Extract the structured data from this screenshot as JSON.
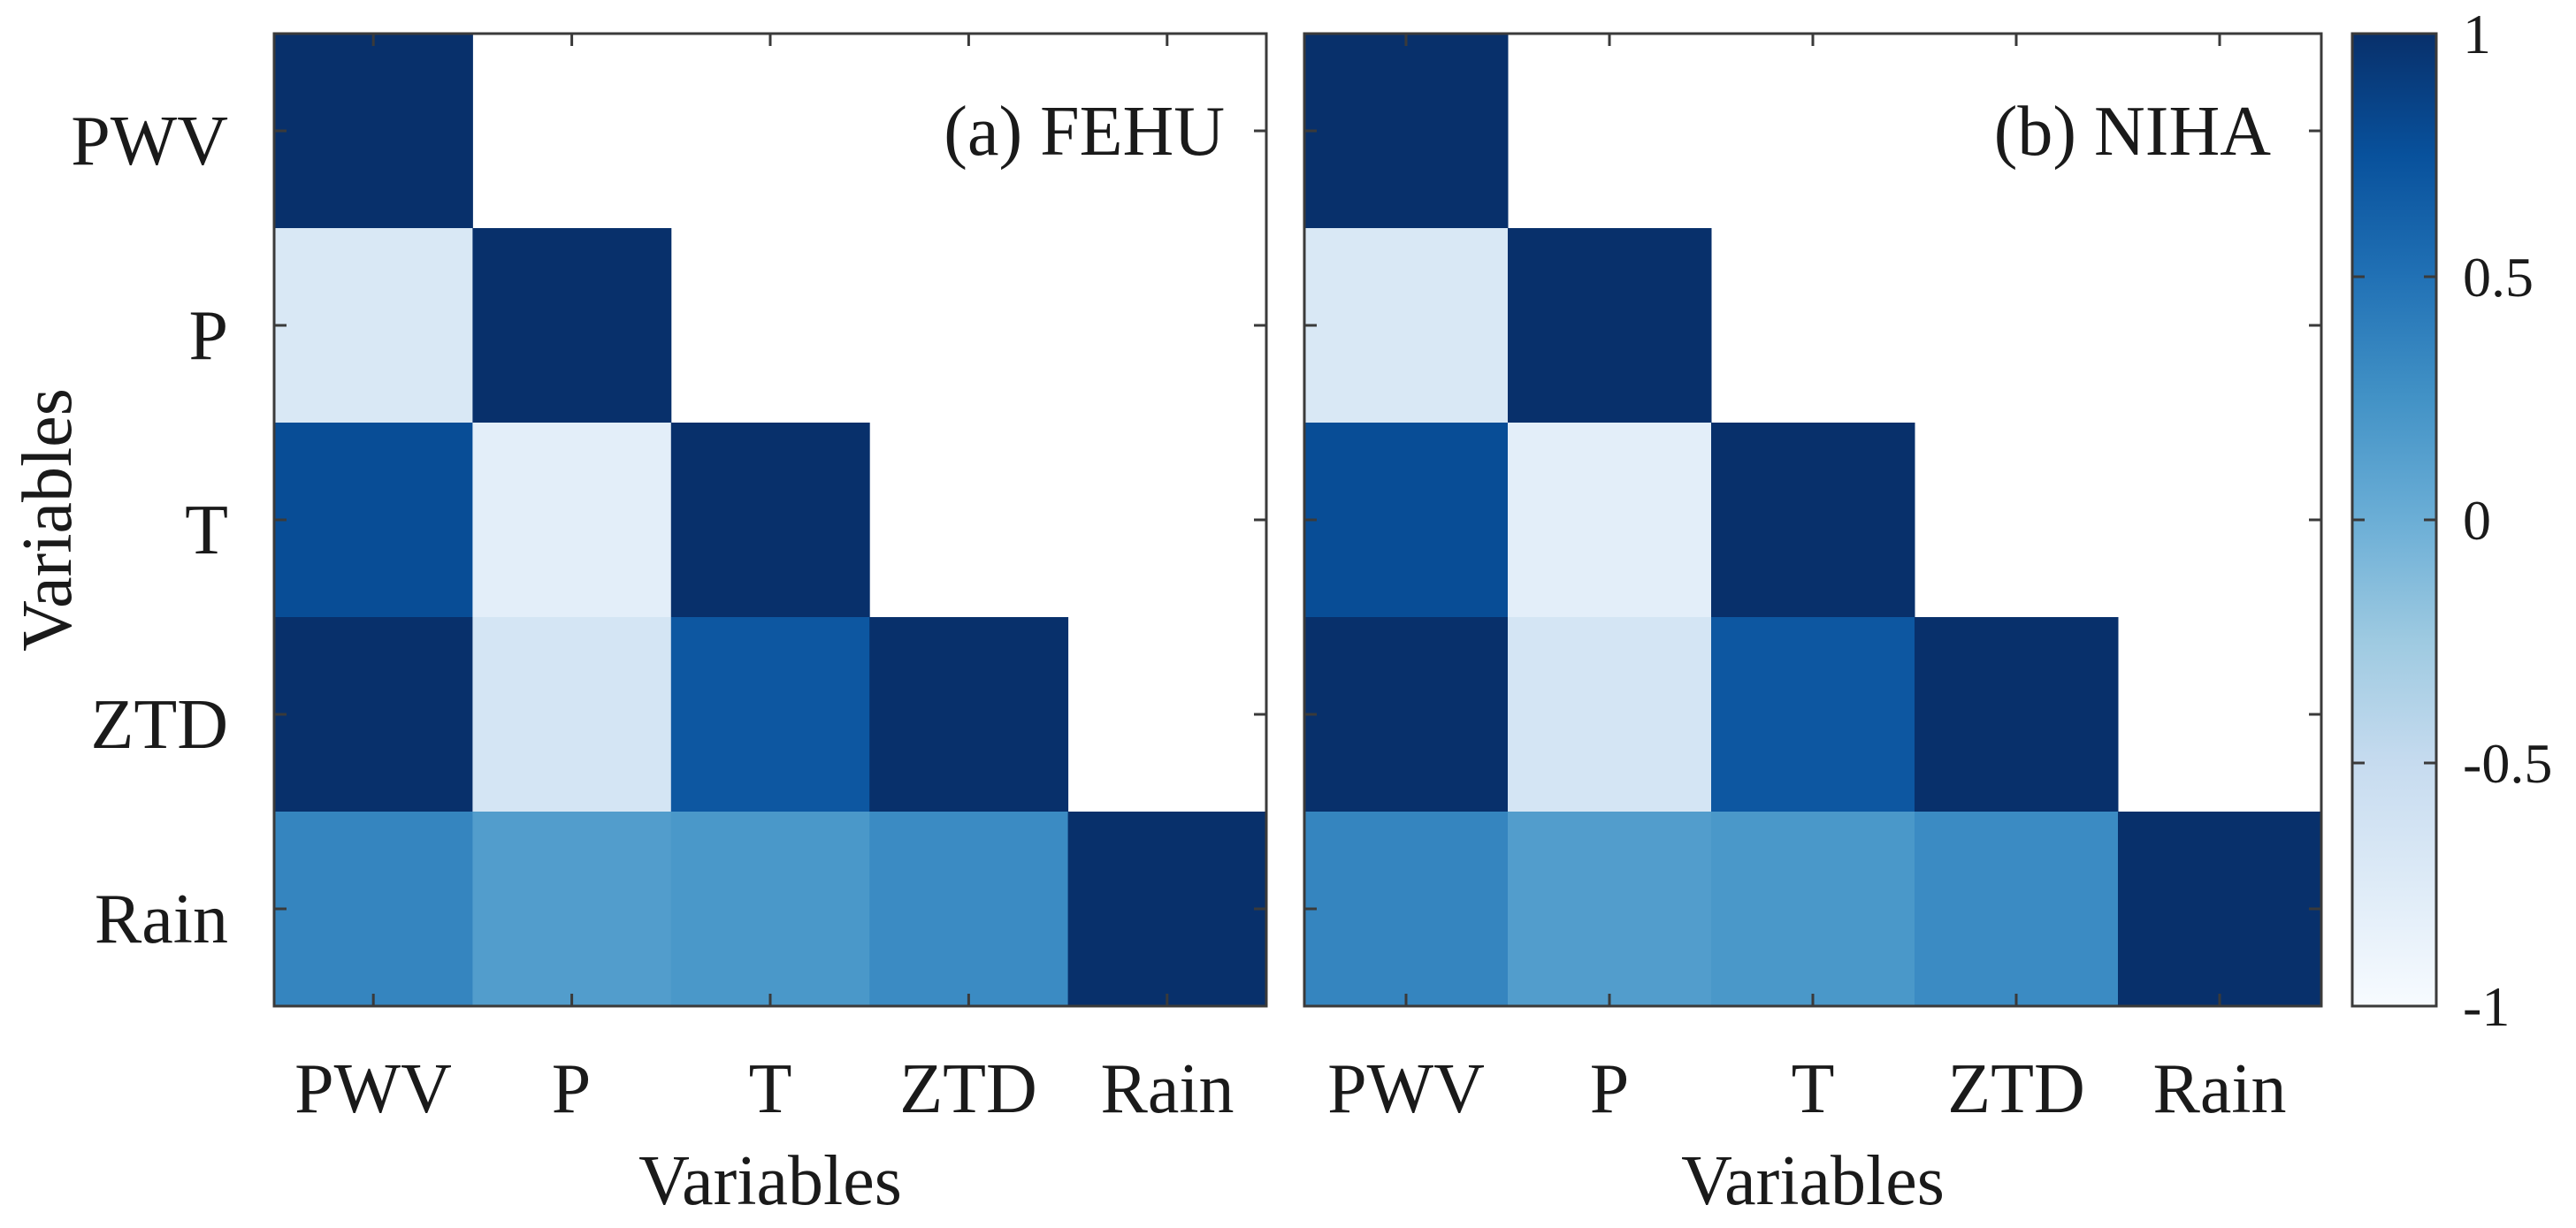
{
  "chart_data": [
    {
      "type": "heatmap",
      "title": "(a) FEHU",
      "xlabel": "Variables",
      "ylabel": "Variables",
      "x_categories": [
        "PWV",
        "P",
        "T",
        "ZTD",
        "Rain"
      ],
      "y_categories": [
        "PWV",
        "P",
        "T",
        "ZTD",
        "Rain"
      ],
      "matrix": [
        [
          1.0,
          null,
          null,
          null,
          null
        ],
        [
          -0.7,
          1.0,
          null,
          null,
          null
        ],
        [
          0.78,
          -0.8,
          1.0,
          null,
          null
        ],
        [
          1.0,
          -0.65,
          0.7,
          1.0,
          null
        ],
        [
          0.35,
          0.15,
          0.2,
          0.3,
          1.0
        ]
      ],
      "clim": [
        -1,
        1
      ]
    },
    {
      "type": "heatmap",
      "title": "(b) NIHA",
      "xlabel": "Variables",
      "ylabel": "",
      "x_categories": [
        "PWV",
        "P",
        "T",
        "ZTD",
        "Rain"
      ],
      "y_categories": [
        "PWV",
        "P",
        "T",
        "ZTD",
        "Rain"
      ],
      "matrix": [
        [
          1.0,
          null,
          null,
          null,
          null
        ],
        [
          -0.7,
          1.0,
          null,
          null,
          null
        ],
        [
          0.78,
          -0.8,
          1.0,
          null,
          null
        ],
        [
          1.0,
          -0.65,
          0.7,
          1.0,
          null
        ],
        [
          0.35,
          0.15,
          0.2,
          0.3,
          1.0
        ]
      ],
      "clim": [
        -1,
        1
      ]
    }
  ],
  "colorbar": {
    "ticks": [
      1,
      0.5,
      0,
      -0.5,
      -1
    ],
    "tick_labels": [
      "1",
      "0.5",
      "0",
      "-0.5",
      "-1"
    ],
    "colors": [
      "#f7fbff",
      "#deebf7",
      "#c6dbef",
      "#9ecae1",
      "#6baed6",
      "#4292c6",
      "#2171b5",
      "#08519c",
      "#08306b"
    ]
  }
}
